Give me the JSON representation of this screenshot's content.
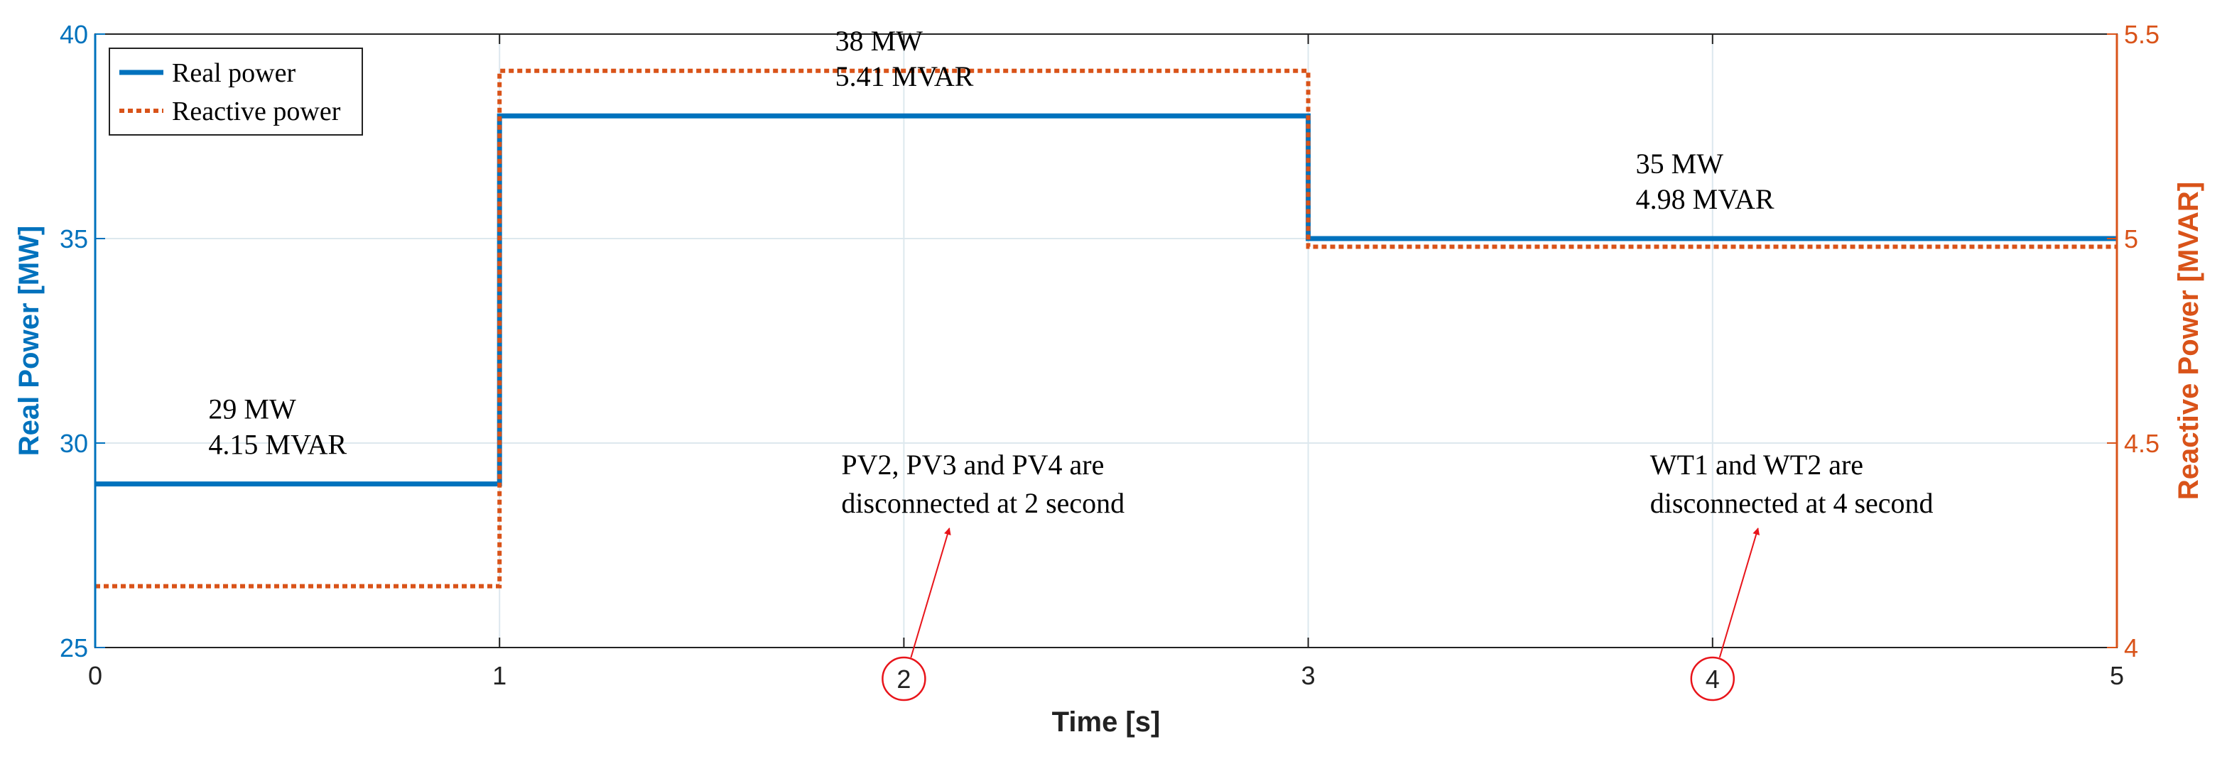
{
  "chart_data": {
    "type": "line",
    "x_axis": {
      "label": "Time [s]",
      "range": [
        0,
        5
      ],
      "ticks": [
        "0",
        "1",
        "2",
        "3",
        "4",
        "5"
      ]
    },
    "y_left": {
      "label": "Real Power [MW]",
      "range": [
        25,
        40
      ],
      "ticks": [
        "25",
        "30",
        "35",
        "40"
      ]
    },
    "y_right": {
      "label": "Reactive Power [MVAR]",
      "range": [
        4,
        5.5
      ],
      "ticks": [
        "4",
        "4.5",
        "5",
        "5.5"
      ]
    },
    "grid": true,
    "legend_position": "top-left",
    "series": [
      {
        "name": "Real power",
        "axis": "left",
        "style": "solid",
        "color": "#0072BD",
        "points": [
          [
            0,
            29
          ],
          [
            1,
            29
          ],
          [
            1,
            38
          ],
          [
            3,
            38
          ],
          [
            3,
            35
          ],
          [
            5,
            35
          ]
        ]
      },
      {
        "name": "Reactive power",
        "axis": "right",
        "style": "dotted",
        "color": "#D95319",
        "points": [
          [
            0,
            4.15
          ],
          [
            1,
            4.15
          ],
          [
            1,
            5.41
          ],
          [
            3,
            5.41
          ],
          [
            3,
            4.98
          ],
          [
            5,
            4.98
          ]
        ]
      }
    ],
    "value_labels": [
      {
        "x": 0.28,
        "line1": "29 MW",
        "line2": "4.15 MVAR"
      },
      {
        "x": 1.83,
        "line1": "38 MW",
        "line2": "5.41 MVAR"
      },
      {
        "x": 3.81,
        "line1": "35 MW",
        "line2": "4.98 MVAR"
      }
    ],
    "event_annotations": [
      {
        "marker": "2",
        "marker_x": 2,
        "line1": "PV2, PV3 and PV4 are",
        "line2": "disconnected at 2 second"
      },
      {
        "marker": "4",
        "marker_x": 4,
        "line1": "WT1 and WT2 are",
        "line2": "disconnected at 4 second"
      }
    ],
    "colors": {
      "left_axis": "#0072BD",
      "right_axis": "#D95319",
      "annotation": "#E8141A",
      "grid": "#DDE8EE"
    }
  }
}
